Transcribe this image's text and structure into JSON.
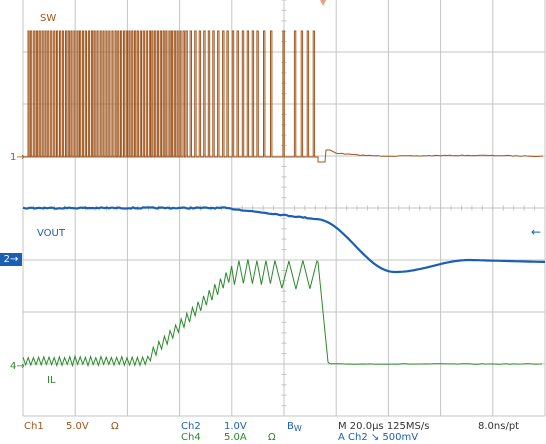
{
  "colors": {
    "ch1": "#a0561e",
    "ch2": "#1a5fb4",
    "ch4": "#2a8a2a",
    "grid": "#c4c4c4",
    "text_brown": "#a0561e",
    "text_blue": "#1a5fb4",
    "text_green": "#2a8a2a"
  },
  "traces": {
    "sw": "SW",
    "vout": "VOUT",
    "il": "IL"
  },
  "markers": {
    "ch1_ref": "1",
    "ch2_ref": "2",
    "ch4_ref": "4",
    "arrow": "→",
    "trigger_level": "←",
    "trigger_pos": "▼"
  },
  "footer": {
    "ch1_label": "Ch1",
    "ch1_scale": "5.0V",
    "ch1_coupling": "Ω",
    "ch2_label": "Ch2",
    "ch2_scale": "1.0V",
    "ch4_label": "Ch4",
    "ch4_scale": "5.0A",
    "ch4_coupling": "Ω",
    "bw": "B",
    "bw_sub": "W",
    "timebase": "M 20.0µs 125MS/s",
    "record": "8.0ns/pt",
    "trigger": "A  Ch2  ↘  500mV"
  }
}
